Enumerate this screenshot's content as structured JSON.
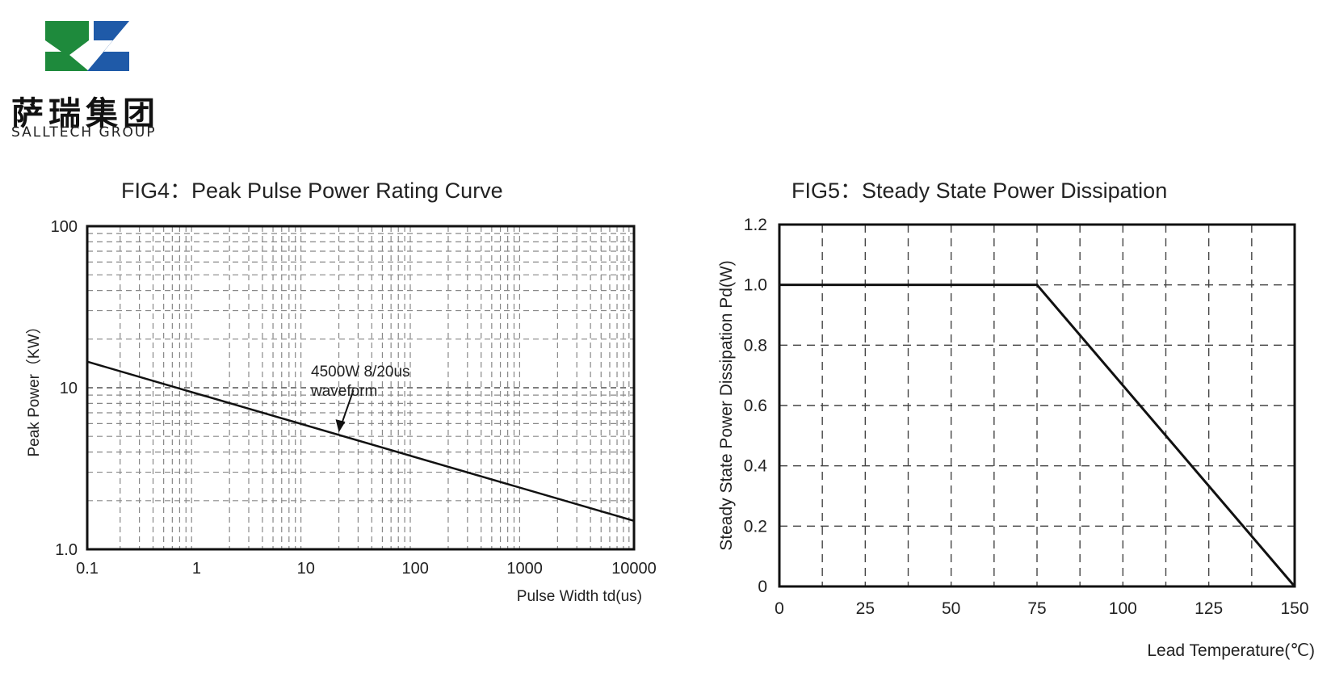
{
  "logo": {
    "name_cn": "萨瑞集团",
    "name_en": "SALLTECH GROUP",
    "colors": {
      "green": "#1e8a3c",
      "blue": "#1f5aa8"
    }
  },
  "chart_data": [
    {
      "type": "line",
      "title": "FIG4：Peak Pulse Power Rating Curve",
      "xlabel": "Pulse Width td(us)",
      "ylabel": "Peak Power（KW）",
      "x_scale": "log",
      "y_scale": "log",
      "xlim": [
        0.1,
        10000
      ],
      "ylim": [
        1.0,
        100
      ],
      "x_ticks": [
        "0.1",
        "1",
        "10",
        "100",
        "1000",
        "10000"
      ],
      "y_ticks": [
        "1.0",
        "10",
        "100"
      ],
      "grid": true,
      "series": [
        {
          "x": [
            0.1,
            10000
          ],
          "y": [
            14.5,
            1.5
          ]
        }
      ],
      "annotation": {
        "text_line1": "4500W 8/20us",
        "text_line2": "waveform",
        "points_to": {
          "x": 20,
          "y": 5.3
        }
      }
    },
    {
      "type": "line",
      "title": "FIG5：Steady State Power Dissipation",
      "xlabel": "Lead Temperature(℃)",
      "ylabel": "Steady State Power Dissipation Pd(W)",
      "xlim": [
        0,
        150
      ],
      "ylim": [
        0,
        1.2
      ],
      "x_ticks": [
        "0",
        "25",
        "50",
        "75",
        "100",
        "125",
        "150"
      ],
      "y_ticks": [
        "0",
        "0.2",
        "0.4",
        "0.6",
        "0.8",
        "1.0",
        "1.2"
      ],
      "grid": true,
      "series": [
        {
          "x": [
            0,
            75,
            150
          ],
          "y": [
            1.0,
            1.0,
            0
          ]
        }
      ]
    }
  ]
}
